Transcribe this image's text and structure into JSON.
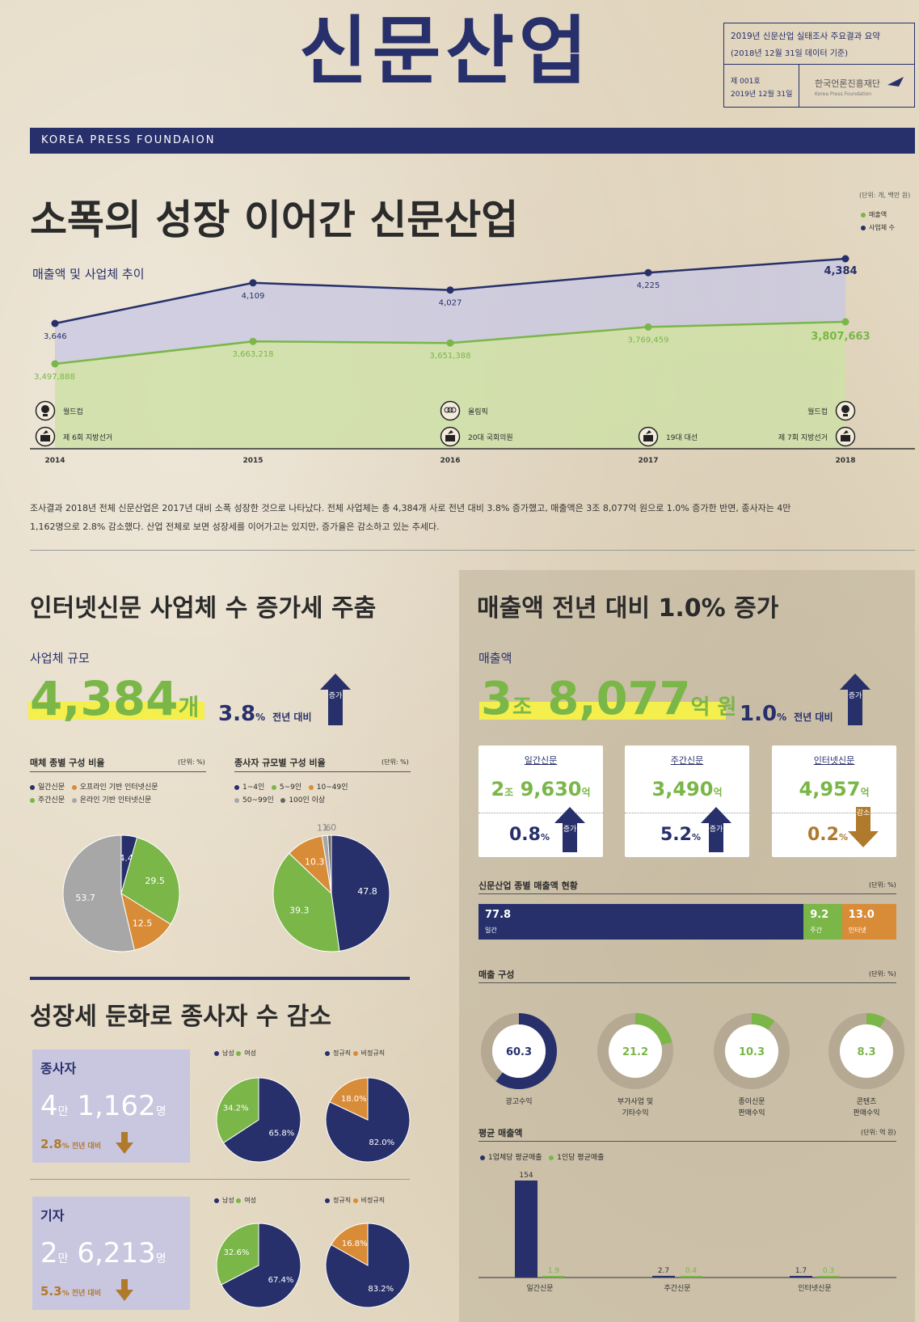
{
  "masthead": {
    "title": "신문산업",
    "report": "2019년 신문산업 실태조사 주요결과 요약",
    "basis": "(2018년 12월 31일 데이터 기준)",
    "issue_no": "제 001호",
    "issue_date": "2019년 12월 31일",
    "publisher": "한국언론진흥재단",
    "publisher_en": "Korea Press Foundation",
    "band": "KOREA PRESS FOUNDAION"
  },
  "section1": {
    "headline": "소폭의 성장 이어간 신문산업",
    "subtitle": "매출액 및 사업체 추이",
    "unit": "(단위: 개, 백만 원)",
    "legend_sales": "매출액",
    "legend_firms": "사업체 수",
    "events": [
      {
        "label": "월드컵"
      },
      {
        "label": "제 6회 지방선거"
      },
      {
        "label": "올림픽"
      },
      {
        "label": "20대 국회의원"
      },
      {
        "label": "19대 대선"
      },
      {
        "label": "월드컵"
      },
      {
        "label": "제 7회 지방선거"
      }
    ],
    "paragraph1": "조사결과 2018년 전체 신문산업은 2017년 대비 소폭 성장한 것으로 나타났다. 전체 사업체는 총 4,384개 사로 전년 대비 3.8% 증가했고, 매출액은 3조 8,077억 원으로 1.0% 증가한 반면, 종사자는 4만",
    "paragraph2": "1,162명으로 2.8% 감소했다. 산업 전체로 보면 성장세를 이어가고는 있지만, 증가율은 감소하고 있는 추세다."
  },
  "section2": {
    "headline": "인터넷신문 사업체 수 증가세 주춤",
    "subtitle": "사업체 규모",
    "count": "4,384",
    "count_unit": "개",
    "pct": "3.8",
    "pct_unit": "%",
    "pct_text": "전년 대비",
    "arrow": "증가",
    "media_title": "매체 종별 구성 비율",
    "media_unit": "(단위: %)",
    "media_legend": [
      "일간신문",
      "오프라인 기반 인터넷신문",
      "주간신문",
      "온라인 기반 인터넷신문"
    ],
    "size_title": "종사자 규모별 구성 비율",
    "size_unit": "(단위: %)",
    "size_legend": [
      "1~4인",
      "5~9인",
      "10~49인",
      "50~99인",
      "100인 이상"
    ]
  },
  "section3": {
    "headline": "매출액 전년 대비 1.0% 증가",
    "subtitle": "매출액",
    "v1": "3",
    "u1": "조",
    "v2": "8,077",
    "u2": "억 원",
    "pct": "1.0",
    "pct_unit": "%",
    "pct_text": "전년 대비",
    "arrow": "증가",
    "cards": [
      {
        "title": "일간신문",
        "value": "9,630",
        "pre": "2",
        "pre_unit": "조",
        "unit": "억",
        "pct": "0.8",
        "dir": "증가"
      },
      {
        "title": "주간신문",
        "value": "3,490",
        "unit": "억",
        "pct": "5.2",
        "dir": "증가"
      },
      {
        "title": "인터넷신문",
        "value": "4,957",
        "unit": "억",
        "pct": "0.2",
        "dir": "감소"
      }
    ],
    "share_title": "신문산업 종별 매출액 현황",
    "share_unit": "(단위: %)",
    "comp_title": "매출 구성",
    "comp_unit": "(단위: %)",
    "avg_title": "평균 매출액",
    "avg_unit": "(단위: 억 원)",
    "avg_legend": [
      "1업체당 평균매출",
      "1인당 평균매출"
    ]
  },
  "section4": {
    "headline": "성장세 둔화로 종사자 수 감소",
    "employees": {
      "label": "종사자",
      "a": "4",
      "au": "만",
      "b": "1,162",
      "bu": "명",
      "pct": "2.8",
      "pct_text": "전년 대비"
    },
    "reporters": {
      "label": "기자",
      "a": "2",
      "au": "만",
      "b": "6,213",
      "bu": "명",
      "pct": "5.3",
      "pct_text": "전년 대비"
    },
    "gender_legend": [
      "남성",
      "여성"
    ],
    "type_legend": [
      "정규직",
      "비정규직"
    ]
  },
  "chart_data": [
    {
      "type": "line",
      "x": [
        "2014",
        "2015",
        "2016",
        "2017",
        "2018"
      ],
      "series": [
        {
          "name": "사업체 수",
          "values": [
            3646,
            4109,
            4027,
            4225,
            4384
          ],
          "labels": [
            "3,646",
            "4,109",
            "4,027",
            "4,225",
            "4,384"
          ]
        },
        {
          "name": "매출액",
          "values": [
            3497888,
            3663218,
            3651388,
            3769459,
            3807663
          ],
          "labels": [
            "3,497,888",
            "3,663,218",
            "3,651,388",
            "3,769,459",
            "3,807,663"
          ]
        }
      ]
    },
    {
      "type": "pie",
      "categories": [
        "일간신문",
        "주간신문",
        "오프라인 기반 인터넷신문",
        "온라인 기반 인터넷신문"
      ],
      "values": [
        4.4,
        29.5,
        12.5,
        53.7
      ],
      "labels": [
        "4.4",
        "29.5",
        "12.5",
        "53.7"
      ]
    },
    {
      "type": "pie",
      "categories": [
        "1~4인",
        "5~9인",
        "10~49인",
        "50~99인",
        "100인 이상"
      ],
      "values": [
        47.8,
        39.3,
        10.3,
        1.6,
        1.0
      ],
      "labels": [
        "47.8",
        "39.3",
        "10.3",
        "1.6",
        "1.0"
      ]
    },
    {
      "type": "bar",
      "categories": [
        "일간",
        "주간",
        "인터넷"
      ],
      "values": [
        77.8,
        9.2,
        13.0
      ],
      "labels": [
        "77.8",
        "9.2",
        "13.0"
      ]
    },
    {
      "type": "pie",
      "categories": [
        "광고수익",
        "부가사업 및 기타수익",
        "종이신문 판매수익",
        "콘텐츠 판매수익"
      ],
      "values": [
        60.3,
        21.2,
        10.3,
        8.3
      ],
      "labels": [
        "60.3",
        "21.2",
        "10.3",
        "8.3"
      ],
      "names": [
        "광고수익",
        "부가사업 및\n기타수익",
        "종이신문\n판매수익",
        "콘텐츠\n판매수익"
      ]
    },
    {
      "type": "bar",
      "categories": [
        "일간신문",
        "주간신문",
        "인터넷신문"
      ],
      "series": [
        {
          "name": "1업체당 평균매출",
          "values": [
            154,
            2.7,
            1.7
          ],
          "labels": [
            "154",
            "2.7",
            "1.7"
          ]
        },
        {
          "name": "1인당 평균매출",
          "values": [
            1.9,
            0.4,
            0.3
          ],
          "labels": [
            "1.9",
            "0.4",
            "0.3"
          ]
        }
      ]
    },
    {
      "type": "pie",
      "categories": [
        "남성",
        "여성"
      ],
      "values": [
        65.8,
        34.2
      ],
      "labels": [
        "65.8%",
        "34.2%"
      ]
    },
    {
      "type": "pie",
      "categories": [
        "정규직",
        "비정규직"
      ],
      "values": [
        82.0,
        18.0
      ],
      "labels": [
        "82.0%",
        "18.0%"
      ]
    },
    {
      "type": "pie",
      "categories": [
        "남성",
        "여성"
      ],
      "values": [
        67.4,
        32.6
      ],
      "labels": [
        "67.4%",
        "32.6%"
      ]
    },
    {
      "type": "pie",
      "categories": [
        "정규직",
        "비정규직"
      ],
      "values": [
        83.2,
        16.8
      ],
      "labels": [
        "83.2%",
        "16.8%"
      ]
    }
  ],
  "colors": {
    "navy": "#27306b",
    "green": "#7ab648",
    "orange": "#d98c38",
    "gray": "#a7a7a7",
    "tan": "#b5a993"
  }
}
